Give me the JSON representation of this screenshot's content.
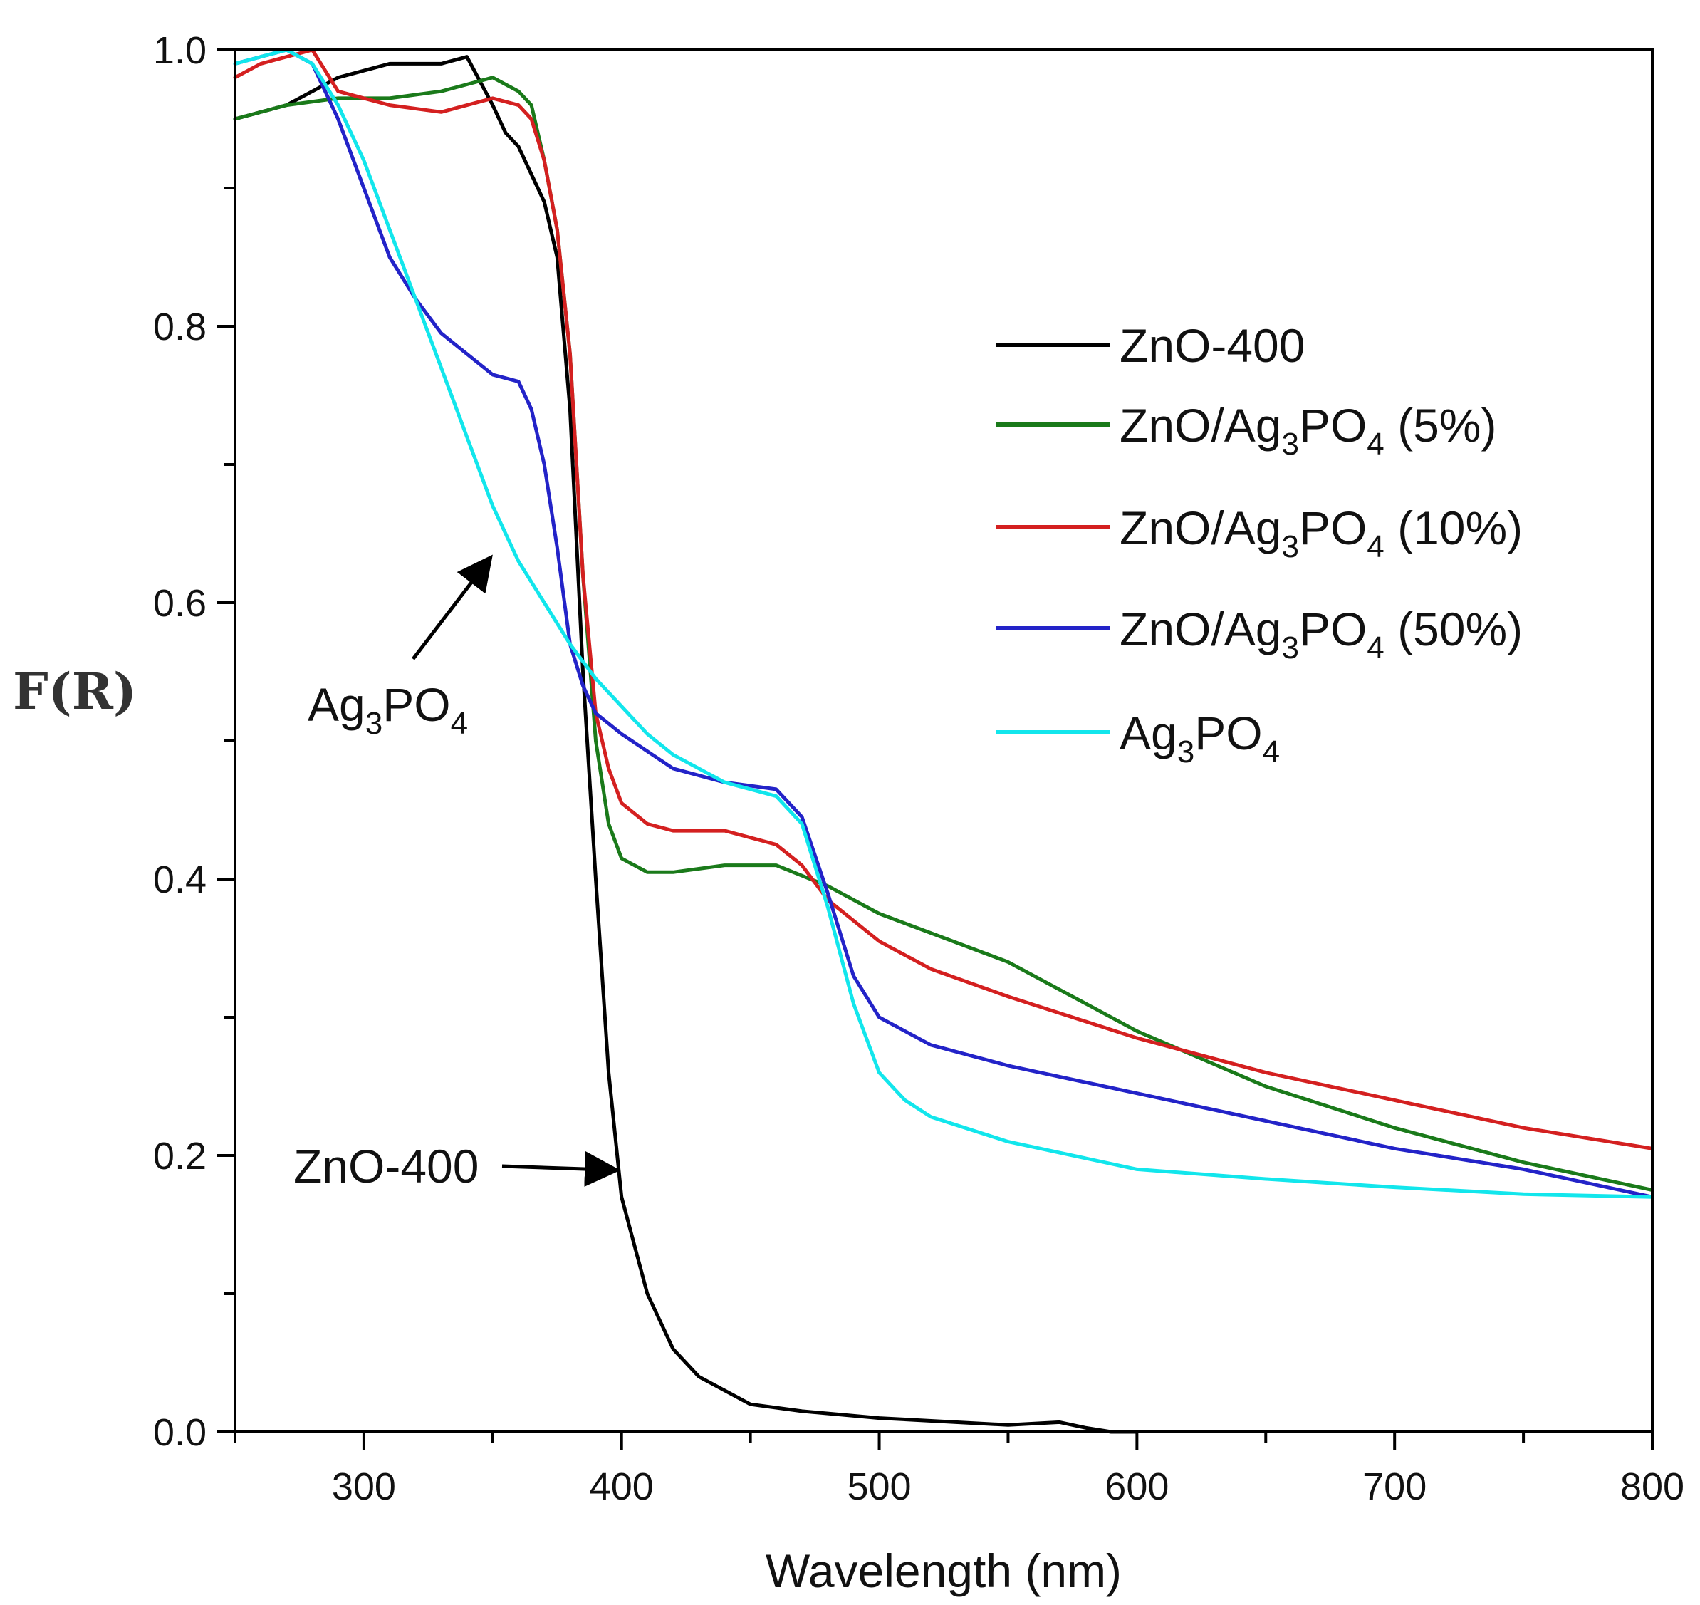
{
  "chart_data": {
    "type": "line",
    "title": "",
    "xlabel": "Wavelength (nm)",
    "ylabel": "F(R)",
    "xlim": [
      250,
      800
    ],
    "ylim": [
      0.0,
      1.0
    ],
    "x_ticks": [
      300,
      400,
      500,
      600,
      700,
      800
    ],
    "x_tick_labels": [
      "300",
      "400",
      "500",
      "600",
      "700",
      "800"
    ],
    "y_ticks": [
      0.0,
      0.2,
      0.4,
      0.6,
      0.8,
      1.0
    ],
    "y_tick_labels": [
      "0.0",
      "0.2",
      "0.4",
      "0.6",
      "0.8",
      "1.0"
    ],
    "grid": false,
    "legend_position": "right-middle",
    "series": [
      {
        "name": "ZnO-400",
        "label": [
          "ZnO-400"
        ],
        "color": "#000000",
        "x": [
          250,
          270,
          290,
          310,
          330,
          340,
          350,
          355,
          360,
          365,
          370,
          375,
          380,
          385,
          390,
          395,
          400,
          410,
          420,
          430,
          440,
          450,
          470,
          500,
          550,
          570,
          580,
          590,
          600
        ],
        "y": [
          0.95,
          0.96,
          0.98,
          0.99,
          0.99,
          0.995,
          0.96,
          0.94,
          0.93,
          0.91,
          0.89,
          0.85,
          0.74,
          0.55,
          0.4,
          0.26,
          0.17,
          0.1,
          0.06,
          0.04,
          0.03,
          0.02,
          0.015,
          0.01,
          0.005,
          0.007,
          0.003,
          0.0,
          0.0
        ]
      },
      {
        "name": "ZnO/Ag3PO4 (5%)",
        "label": [
          "ZnO/Ag",
          "3",
          "PO",
          "4",
          " (5%)"
        ],
        "color": "#1a7a1a",
        "x": [
          250,
          270,
          290,
          310,
          330,
          350,
          360,
          365,
          370,
          375,
          380,
          385,
          390,
          395,
          400,
          410,
          420,
          440,
          460,
          480,
          500,
          550,
          600,
          650,
          700,
          750,
          800
        ],
        "y": [
          0.95,
          0.96,
          0.965,
          0.965,
          0.97,
          0.98,
          0.97,
          0.96,
          0.92,
          0.87,
          0.78,
          0.62,
          0.5,
          0.44,
          0.415,
          0.405,
          0.405,
          0.41,
          0.41,
          0.395,
          0.375,
          0.34,
          0.29,
          0.25,
          0.22,
          0.195,
          0.175
        ]
      },
      {
        "name": "ZnO/Ag3PO4 (10%)",
        "label": [
          "ZnO/Ag",
          "3",
          "PO",
          "4",
          " (10%)"
        ],
        "color": "#d42020",
        "x": [
          250,
          260,
          270,
          280,
          290,
          310,
          330,
          350,
          360,
          365,
          370,
          375,
          380,
          385,
          390,
          395,
          400,
          410,
          420,
          440,
          460,
          470,
          480,
          500,
          520,
          550,
          600,
          650,
          700,
          750,
          800
        ],
        "y": [
          0.98,
          0.99,
          0.995,
          1.0,
          0.97,
          0.96,
          0.955,
          0.965,
          0.96,
          0.95,
          0.92,
          0.87,
          0.78,
          0.62,
          0.52,
          0.48,
          0.455,
          0.44,
          0.435,
          0.435,
          0.425,
          0.41,
          0.385,
          0.355,
          0.335,
          0.315,
          0.285,
          0.26,
          0.24,
          0.22,
          0.205
        ]
      },
      {
        "name": "ZnO/Ag3PO4 (50%)",
        "label": [
          "ZnO/Ag",
          "3",
          "PO",
          "4",
          " (50%)"
        ],
        "color": "#2323c8",
        "x": [
          250,
          260,
          270,
          280,
          290,
          300,
          310,
          320,
          330,
          340,
          350,
          360,
          365,
          370,
          375,
          380,
          385,
          390,
          400,
          420,
          440,
          460,
          470,
          480,
          490,
          500,
          520,
          550,
          600,
          650,
          700,
          750,
          800
        ],
        "y": [
          0.99,
          0.995,
          1.0,
          0.99,
          0.95,
          0.9,
          0.85,
          0.82,
          0.795,
          0.78,
          0.765,
          0.76,
          0.74,
          0.7,
          0.64,
          0.57,
          0.54,
          0.52,
          0.505,
          0.48,
          0.47,
          0.465,
          0.445,
          0.39,
          0.33,
          0.3,
          0.28,
          0.265,
          0.245,
          0.225,
          0.205,
          0.19,
          0.17
        ]
      },
      {
        "name": "Ag3PO4",
        "label": [
          "Ag",
          "3",
          "PO",
          "4"
        ],
        "color": "#12e6ec",
        "x": [
          250,
          260,
          270,
          280,
          290,
          300,
          310,
          320,
          330,
          340,
          350,
          360,
          370,
          380,
          390,
          400,
          410,
          420,
          440,
          460,
          470,
          480,
          490,
          500,
          510,
          520,
          550,
          600,
          650,
          700,
          750,
          800
        ],
        "y": [
          0.99,
          0.995,
          1.0,
          0.99,
          0.96,
          0.92,
          0.87,
          0.82,
          0.77,
          0.72,
          0.67,
          0.63,
          0.6,
          0.57,
          0.545,
          0.525,
          0.505,
          0.49,
          0.47,
          0.46,
          0.44,
          0.38,
          0.31,
          0.26,
          0.24,
          0.228,
          0.21,
          0.19,
          0.183,
          0.177,
          0.172,
          0.17
        ]
      }
    ],
    "annotations": [
      {
        "text": [
          "Ag",
          "3",
          "PO",
          "4"
        ],
        "points_to": {
          "x": 350,
          "y": 0.64
        }
      },
      {
        "text": [
          "ZnO-400"
        ],
        "points_to": {
          "x": 399,
          "y": 0.19
        }
      }
    ]
  }
}
